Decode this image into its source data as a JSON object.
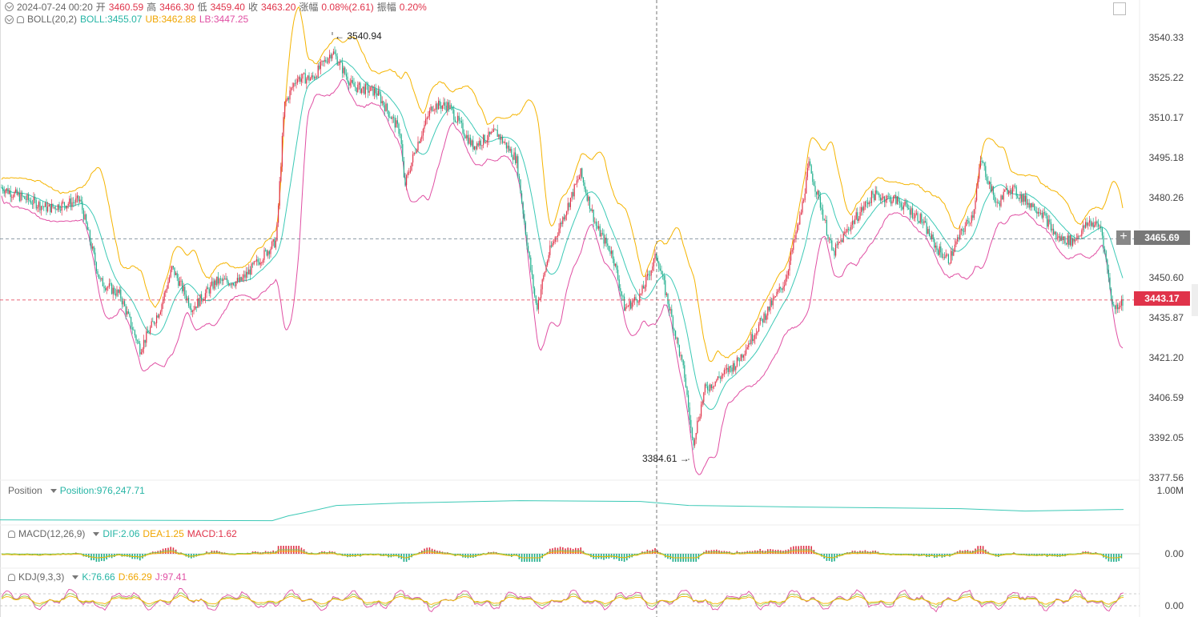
{
  "header": {
    "date": "2024-07-24 00:20",
    "open_label": "开",
    "open": "3460.59",
    "high_label": "高",
    "high": "3466.30",
    "low_label": "低",
    "low": "3459.40",
    "close_label": "收",
    "close": "3463.20",
    "change_label": "涨幅",
    "change": "0.08%(2.61)",
    "amp_label": "振幅",
    "amp": "0.20%"
  },
  "boll": {
    "name": "BOLL(20,2)",
    "boll": "BOLL:3455.07",
    "ub": "UB:3462.88",
    "lb": "LB:3447.25"
  },
  "position": {
    "name": "Position",
    "value": "Position:976,247.71",
    "axis": "1.00M"
  },
  "macd": {
    "name": "MACD(12,26,9)",
    "dif": "DIF:2.06",
    "dea": "DEA:1.25",
    "macd": "MACD:1.62",
    "axis": "0.00"
  },
  "kdj": {
    "name": "KDJ(9,3,3)",
    "k": "K:76.66",
    "d": "D:66.29",
    "j": "J:97.41",
    "axis": "0.00"
  },
  "price_axis": [
    "3540.33",
    "3525.22",
    "3510.17",
    "3495.18",
    "3480.26",
    "3465.69",
    "3450.60",
    "3435.87",
    "3421.20",
    "3406.59",
    "3392.05",
    "3377.56"
  ],
  "tags": {
    "crosshair": "3465.69",
    "last": "3443.17"
  },
  "annotations": {
    "high": "3540.94",
    "low": "3384.61"
  },
  "colors": {
    "up": "#e0334a",
    "down": "#1fae8c",
    "boll_mid": "#3cc9b6",
    "boll_up": "#f5b400",
    "boll_low": "#e04fa3",
    "tag_last": "#e0334a",
    "tag_cross": "#777777"
  },
  "chart_data": {
    "type": "candlestick",
    "ylim": [
      3377.56,
      3548
    ],
    "last": 3443.17,
    "high": 3540.94,
    "low": 3384.61,
    "trend": [
      [
        0,
        3485
      ],
      [
        20,
        3482
      ],
      [
        60,
        3477
      ],
      [
        100,
        3480
      ],
      [
        125,
        3450
      ],
      [
        150,
        3445
      ],
      [
        175,
        3425
      ],
      [
        200,
        3440
      ],
      [
        215,
        3455
      ],
      [
        240,
        3440
      ],
      [
        270,
        3450
      ],
      [
        300,
        3450
      ],
      [
        330,
        3460
      ],
      [
        345,
        3465
      ],
      [
        355,
        3515
      ],
      [
        370,
        3525
      ],
      [
        390,
        3525
      ],
      [
        415,
        3535
      ],
      [
        440,
        3522
      ],
      [
        470,
        3520
      ],
      [
        500,
        3505
      ],
      [
        505,
        3485
      ],
      [
        520,
        3500
      ],
      [
        540,
        3515
      ],
      [
        560,
        3515
      ],
      [
        590,
        3500
      ],
      [
        620,
        3505
      ],
      [
        645,
        3495
      ],
      [
        660,
        3460
      ],
      [
        670,
        3440
      ],
      [
        685,
        3460
      ],
      [
        705,
        3475
      ],
      [
        725,
        3490
      ],
      [
        745,
        3470
      ],
      [
        765,
        3460
      ],
      [
        780,
        3440
      ],
      [
        800,
        3445
      ],
      [
        820,
        3460
      ],
      [
        840,
        3435
      ],
      [
        855,
        3415
      ],
      [
        865,
        3390
      ],
      [
        880,
        3410
      ],
      [
        900,
        3415
      ],
      [
        920,
        3420
      ],
      [
        940,
        3430
      ],
      [
        960,
        3440
      ],
      [
        980,
        3450
      ],
      [
        1000,
        3475
      ],
      [
        1010,
        3493
      ],
      [
        1025,
        3478
      ],
      [
        1040,
        3460
      ],
      [
        1060,
        3470
      ],
      [
        1090,
        3482
      ],
      [
        1120,
        3480
      ],
      [
        1150,
        3473
      ],
      [
        1170,
        3462
      ],
      [
        1185,
        3458
      ],
      [
        1200,
        3468
      ],
      [
        1215,
        3475
      ],
      [
        1225,
        3495
      ],
      [
        1245,
        3478
      ],
      [
        1260,
        3485
      ],
      [
        1280,
        3480
      ],
      [
        1300,
        3476
      ],
      [
        1320,
        3466
      ],
      [
        1340,
        3465
      ],
      [
        1360,
        3472
      ],
      [
        1375,
        3470
      ],
      [
        1390,
        3440
      ],
      [
        1403,
        3443
      ]
    ]
  }
}
